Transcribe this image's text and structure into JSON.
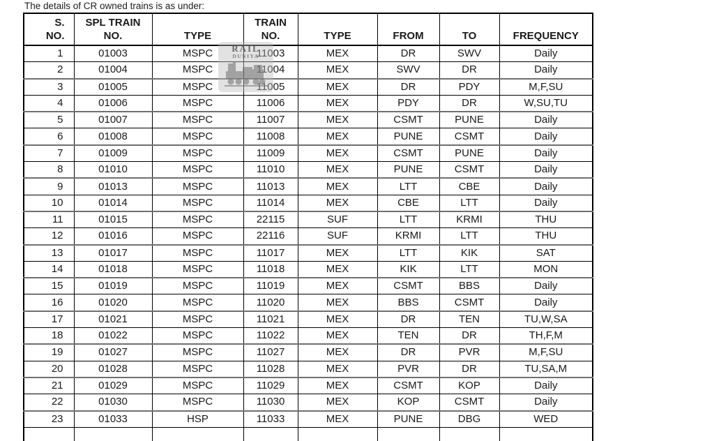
{
  "title": "The details of CR owned trains is as under:",
  "watermark": {
    "line1": "RAIL",
    "line2": "DUNIYA",
    "icon": "steam-train"
  },
  "colors": {
    "border": "#000000",
    "heavy_separator": "#6f6f6f",
    "text": "#1a1a1a",
    "watermark_gray": "#8f8f8f"
  },
  "table": {
    "headers": [
      {
        "lines": [
          "S.",
          "NO."
        ]
      },
      {
        "lines": [
          "SPL TRAIN",
          "NO."
        ]
      },
      {
        "lines": [
          "TYPE"
        ]
      },
      {
        "lines": [
          "TRAIN",
          "NO."
        ]
      },
      {
        "lines": [
          "TYPE"
        ]
      },
      {
        "lines": [
          "FROM"
        ]
      },
      {
        "lines": [
          "TO"
        ]
      },
      {
        "lines": [
          "FREQUENCY"
        ]
      }
    ],
    "rows": [
      [
        "1",
        "01003",
        "MSPC",
        "11003",
        "MEX",
        "DR",
        "SWV",
        "Daily"
      ],
      [
        "2",
        "01004",
        "MSPC",
        "11004",
        "MEX",
        "SWV",
        "DR",
        "Daily"
      ],
      [
        "3",
        "01005",
        "MSPC",
        "11005",
        "MEX",
        "DR",
        "PDY",
        "M,F,SU"
      ],
      [
        "4",
        "01006",
        "MSPC",
        "11006",
        "MEX",
        "PDY",
        "DR",
        "W,SU,TU"
      ],
      [
        "5",
        "01007",
        "MSPC",
        "11007",
        "MEX",
        "CSMT",
        "PUNE",
        "Daily"
      ],
      [
        "6",
        "01008",
        "MSPC",
        "11008",
        "MEX",
        "PUNE",
        "CSMT",
        "Daily"
      ],
      [
        "7",
        "01009",
        "MSPC",
        "11009",
        "MEX",
        "CSMT",
        "PUNE",
        "Daily"
      ],
      [
        "8",
        "01010",
        "MSPC",
        "11010",
        "MEX",
        "PUNE",
        "CSMT",
        "Daily"
      ],
      [
        "9",
        "01013",
        "MSPC",
        "11013",
        "MEX",
        "LTT",
        "CBE",
        "Daily"
      ],
      [
        "10",
        "01014",
        "MSPC",
        "11014",
        "MEX",
        "CBE",
        "LTT",
        "Daily"
      ],
      [
        "11",
        "01015",
        "MSPC",
        "22115",
        "SUF",
        "LTT",
        "KRMI",
        "THU"
      ],
      [
        "12",
        "01016",
        "MSPC",
        "22116",
        "SUF",
        "KRMI",
        "LTT",
        "THU"
      ],
      [
        "13",
        "01017",
        "MSPC",
        "11017",
        "MEX",
        "LTT",
        "KIK",
        "SAT"
      ],
      [
        "14",
        "01018",
        "MSPC",
        "11018",
        "MEX",
        "KIK",
        "LTT",
        "MON"
      ],
      [
        "15",
        "01019",
        "MSPC",
        "11019",
        "MEX",
        "CSMT",
        "BBS",
        "Daily"
      ],
      [
        "16",
        "01020",
        "MSPC",
        "11020",
        "MEX",
        "BBS",
        "CSMT",
        "Daily"
      ],
      [
        "17",
        "01021",
        "MSPC",
        "11021",
        "MEX",
        "DR",
        "TEN",
        "TU,W,SA"
      ],
      [
        "18",
        "01022",
        "MSPC",
        "11022",
        "MEX",
        "TEN",
        "DR",
        "TH,F,M"
      ],
      [
        "19",
        "01027",
        "MSPC",
        "11027",
        "MEX",
        "DR",
        "PVR",
        "M,F,SU"
      ],
      [
        "20",
        "01028",
        "MSPC",
        "11028",
        "MEX",
        "PVR",
        "DR",
        "TU,SA,M"
      ],
      [
        "21",
        "01029",
        "MSPC",
        "11029",
        "MEX",
        "CSMT",
        "KOP",
        "Daily"
      ],
      [
        "22",
        "01030",
        "MSPC",
        "11030",
        "MEX",
        "KOP",
        "CSMT",
        "Daily"
      ],
      [
        "23",
        "01033",
        "HSP",
        "11033",
        "MEX",
        "PUNE",
        "DBG",
        "WED"
      ]
    ]
  }
}
